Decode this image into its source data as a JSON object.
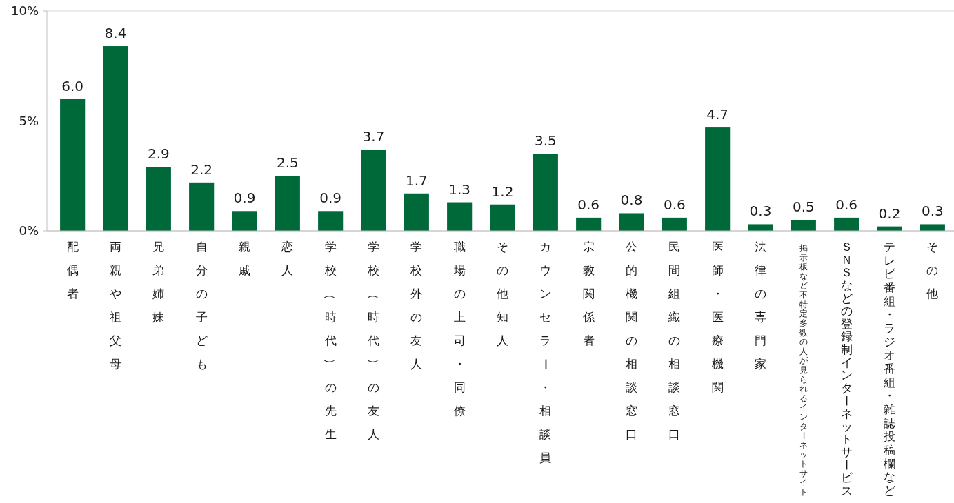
{
  "chart_data": {
    "type": "bar",
    "categories": [
      "配偶者",
      "両親や祖父母",
      "兄弟姉妹",
      "自分の子ども",
      "親戚",
      "恋人",
      "学校（時代）の先生",
      "学校（時代）の友人",
      "学校外の友人",
      "職場の上司・同僚",
      "その他知人",
      "カウンセラー・相談員",
      "宗教関係者",
      "公的機関の相談窓口",
      "民間組織の相談窓口",
      "医師・医療機関",
      "法律の専門家",
      "掲示板など不特定多数の人が見られるインターネットサイト",
      "ＳＮＳなどの登録制インターネットサービス",
      "テレビ番組・ラジオ番組・雑誌投稿欄など",
      "その他"
    ],
    "values": [
      6.0,
      8.4,
      2.9,
      2.2,
      0.9,
      2.5,
      0.9,
      3.7,
      1.7,
      1.3,
      1.2,
      3.5,
      0.6,
      0.8,
      0.6,
      4.7,
      0.3,
      0.5,
      0.6,
      0.2,
      0.3
    ],
    "value_labels": [
      "6.0",
      "8.4",
      "2.9",
      "2.2",
      "0.9",
      "2.5",
      "0.9",
      "3.7",
      "1.7",
      "1.3",
      "1.2",
      "3.5",
      "0.6",
      "0.8",
      "0.6",
      "4.7",
      "0.3",
      "0.5",
      "0.6",
      "0.2",
      "0.3"
    ],
    "color": "#00693a",
    "ylim": [
      0,
      10
    ],
    "yticks": [
      {
        "value": 0,
        "label": "0%"
      },
      {
        "value": 5,
        "label": "5%"
      },
      {
        "value": 10,
        "label": "10%"
      }
    ],
    "grid": "y"
  }
}
